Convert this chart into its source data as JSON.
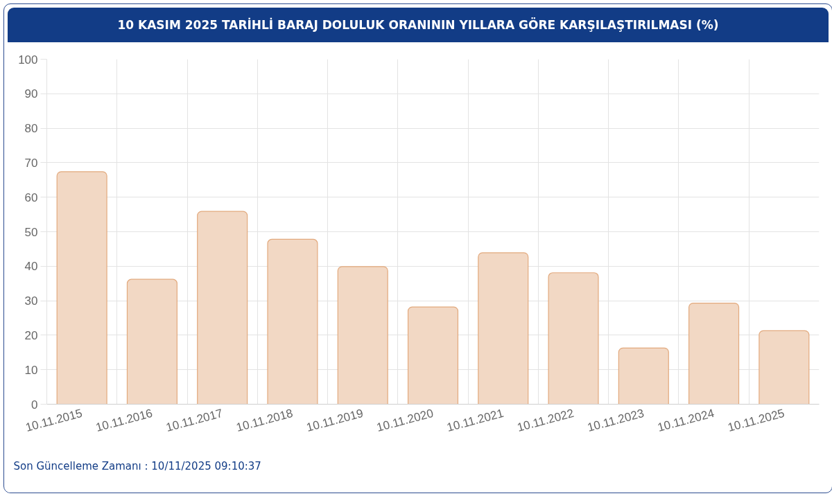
{
  "chart_data": {
    "type": "bar",
    "title": "10 KASIM 2025 TARİHLİ BARAJ DOLULUK ORANININ YILLARA GÖRE KARŞILAŞTIRILMASI (%)",
    "categories": [
      "10.11.2015",
      "10.11.2016",
      "10.11.2017",
      "10.11.2018",
      "10.11.2019",
      "10.11.2020",
      "10.11.2021",
      "10.11.2022",
      "10.11.2023",
      "10.11.2024",
      "10.11.2025"
    ],
    "values": [
      67.4,
      36.2,
      55.9,
      47.8,
      39.9,
      28.2,
      43.9,
      38.1,
      16.3,
      29.3,
      21.3
    ],
    "color": "#f2d8c4",
    "ylim": [
      0,
      100
    ],
    "yticks": [
      0,
      10,
      20,
      30,
      40,
      50,
      60,
      70,
      80,
      90,
      100
    ],
    "grid": true,
    "annotations": [
      "Son Güncelleme Zamanı : 10/11/2025 09:10:37"
    ]
  }
}
